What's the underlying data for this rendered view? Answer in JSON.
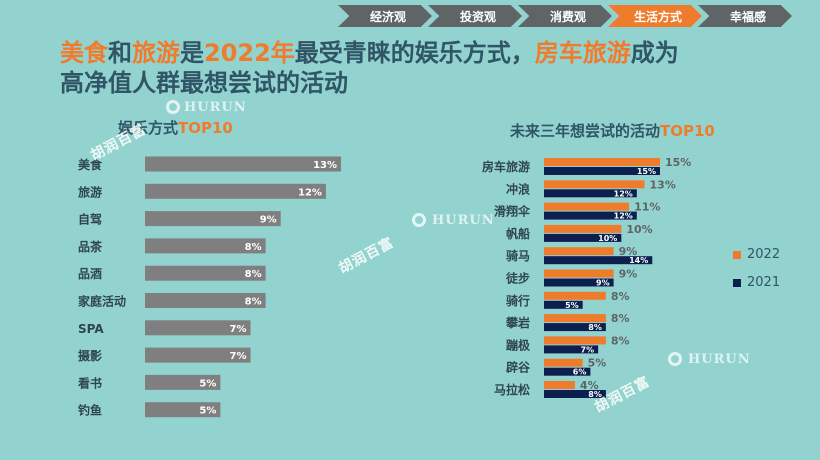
{
  "nav": {
    "tabs": [
      {
        "label": "经济观",
        "active": false
      },
      {
        "label": "投资观",
        "active": false
      },
      {
        "label": "消费观",
        "active": false
      },
      {
        "label": "生活方式",
        "active": true
      },
      {
        "label": "幸福感",
        "active": false
      }
    ]
  },
  "headline": {
    "p1": "美食",
    "p2": "和",
    "p3": "旅游",
    "p4": "是",
    "p5": "2022年",
    "p6": "最受青睐的娱乐方式，",
    "p7": "房车旅游",
    "p8": "成为",
    "line2": "高净值人群最想尝试的活动"
  },
  "watermarks": {
    "hurun": "HURUN",
    "cn": "胡润百富"
  },
  "colors": {
    "background": "#93d3cf",
    "gray_bar": "#7f7f7f",
    "orange": "#ef7c2c",
    "navy": "#0d1f4f",
    "title_text": "#2f5566"
  },
  "chart_data": [
    {
      "type": "bar",
      "orientation": "horizontal",
      "title_main": "娱乐方式",
      "title_accent": "TOP10",
      "categories": [
        "美食",
        "旅游",
        "自驾",
        "品茶",
        "品酒",
        "家庭活动",
        "SPA",
        "摄影",
        "看书",
        "钓鱼"
      ],
      "values": [
        13,
        12,
        9,
        8,
        8,
        8,
        7,
        7,
        5,
        5
      ],
      "value_labels": [
        "13%",
        "12%",
        "9%",
        "8%",
        "8%",
        "8%",
        "7%",
        "7%",
        "5%",
        "5%"
      ],
      "unit": "%",
      "xlim": [
        0,
        13
      ],
      "grid": false
    },
    {
      "type": "bar",
      "orientation": "horizontal",
      "title_main": "未来三年想尝试的活动",
      "title_accent": "TOP10",
      "categories": [
        "房车旅游",
        "冲浪",
        "滑翔伞",
        "帆船",
        "骑马",
        "徒步",
        "骑行",
        "攀岩",
        "蹦极",
        "辟谷",
        "马拉松"
      ],
      "series": [
        {
          "name": "2022",
          "values": [
            15,
            13,
            11,
            10,
            9,
            9,
            8,
            8,
            8,
            5,
            4
          ],
          "value_labels": [
            "15%",
            "13%",
            "11%",
            "10%",
            "9%",
            "9%",
            "8%",
            "8%",
            "8%",
            "5%",
            "4%"
          ]
        },
        {
          "name": "2021",
          "values": [
            15,
            12,
            12,
            10,
            14,
            9,
            5,
            8,
            7,
            6,
            8
          ],
          "value_labels": [
            "15%",
            "12%",
            "12%",
            "10%",
            "14%",
            "9%",
            "5%",
            "8%",
            "7%",
            "6%",
            "8%"
          ]
        }
      ],
      "unit": "%",
      "xlim": [
        0,
        15
      ],
      "legend_position": "right",
      "grid": false
    }
  ]
}
